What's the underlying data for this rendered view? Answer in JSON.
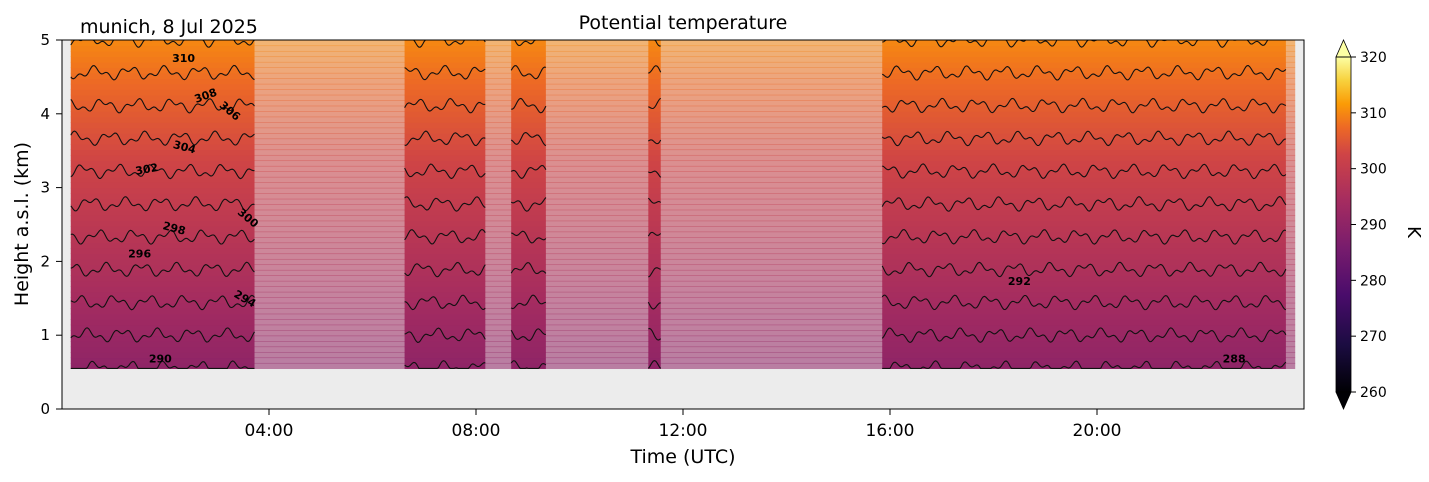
{
  "figure": {
    "location_date": "munich, 8 Jul 2025",
    "title": "Potential temperature"
  },
  "chart_data": {
    "type": "heatmap",
    "title": "Potential temperature",
    "location_date": "munich, 8 Jul 2025",
    "xlabel": "Time (UTC)",
    "ylabel": "Height a.s.l. (km)",
    "x_range_hours": [
      0,
      24
    ],
    "y_range_km": [
      0,
      5
    ],
    "x_ticks": [
      {
        "hour": 4,
        "label": "04:00"
      },
      {
        "hour": 8,
        "label": "08:00"
      },
      {
        "hour": 12,
        "label": "12:00"
      },
      {
        "hour": 16,
        "label": "16:00"
      },
      {
        "hour": 20,
        "label": "20:00"
      }
    ],
    "y_ticks": [
      0,
      1,
      2,
      3,
      4,
      5
    ],
    "colorbar": {
      "label": "K",
      "colormap": "inferno",
      "range": [
        260,
        320
      ],
      "ticks": [
        260,
        270,
        280,
        290,
        300,
        310,
        320
      ],
      "extend": "both"
    },
    "data_bottom_km": 0.55,
    "data_start_hour": 0.17,
    "data_end_hour": 23.83,
    "masked_color": "#ececec",
    "contour_interval_K": 2,
    "profile_reference": {
      "theta_at_1km_K": 292,
      "lapse_K_per_km": 4.5
    },
    "valid_periods_hours": [
      [
        0.17,
        3.72
      ],
      [
        6.62,
        8.18
      ],
      [
        8.68,
        9.35
      ],
      [
        11.33,
        11.57
      ],
      [
        15.85,
        23.65
      ]
    ],
    "contour_labels": [
      {
        "text": "310",
        "hour": 2.35,
        "km": 4.7,
        "angle": 0
      },
      {
        "text": "308",
        "hour": 2.8,
        "km": 4.2,
        "angle": -20
      },
      {
        "text": "306",
        "hour": 3.2,
        "km": 4.0,
        "angle": 40
      },
      {
        "text": "304",
        "hour": 2.35,
        "km": 3.5,
        "angle": 15
      },
      {
        "text": "302",
        "hour": 1.65,
        "km": 3.2,
        "angle": -10
      },
      {
        "text": "300",
        "hour": 3.55,
        "km": 2.55,
        "angle": 40
      },
      {
        "text": "298",
        "hour": 2.15,
        "km": 2.4,
        "angle": 15
      },
      {
        "text": "296",
        "hour": 1.5,
        "km": 2.05,
        "angle": 0
      },
      {
        "text": "294",
        "hour": 3.5,
        "km": 1.45,
        "angle": 30
      },
      {
        "text": "292",
        "hour": 18.5,
        "km": 1.68,
        "angle": 0
      },
      {
        "text": "290",
        "hour": 1.9,
        "km": 0.63,
        "angle": 0
      },
      {
        "text": "288",
        "hour": 22.65,
        "km": 0.63,
        "angle": 0
      }
    ]
  }
}
